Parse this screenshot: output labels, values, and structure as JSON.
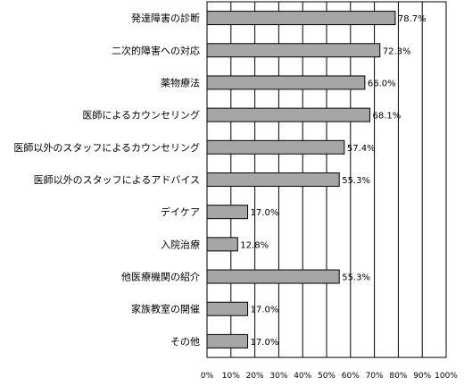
{
  "chart_data": {
    "type": "bar",
    "orientation": "horizontal",
    "categories": [
      "発達障害の診断",
      "二次的障害への対応",
      "薬物療法",
      "医師によるカウンセリング",
      "医師以外のスタッフによるカウンセリング",
      "医師以外のスタッフによるアドバイス",
      "デイケア",
      "入院治療",
      "他医療機関の紹介",
      "家族教室の開催",
      "その他"
    ],
    "values": [
      78.7,
      72.3,
      66.0,
      68.1,
      57.4,
      55.3,
      17.0,
      12.8,
      55.3,
      17.0,
      17.0
    ],
    "value_labels": [
      "78.7%",
      "72.3%",
      "66.0%",
      "68.1%",
      "57.4%",
      "55.3%",
      "17.0%",
      "12.8%",
      "55.3%",
      "17.0%",
      "17.0%"
    ],
    "x_ticks": [
      "0%",
      "10%",
      "20%",
      "30%",
      "40%",
      "50%",
      "60%",
      "70%",
      "80%",
      "90%",
      "100%"
    ],
    "xlim": [
      0,
      100
    ],
    "grid": true,
    "legend": "none",
    "title": "",
    "xlabel": "",
    "ylabel": "",
    "bar_color": "#a6a6a6",
    "bar_edge_color": "#000000"
  }
}
